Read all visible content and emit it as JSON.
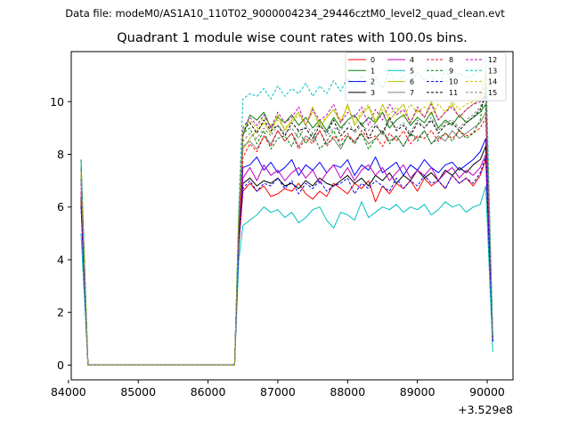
{
  "figure": {
    "suptitle": "Data file: modeM0/AS1A10_110T02_9000004234_29446cztM0_level2_quad_clean.evt",
    "title": "Quadrant 1 module wise count rates with 100.0s bins."
  },
  "chart_data": {
    "type": "line",
    "title": "Quadrant 1 module wise count rates with 100.0s bins.",
    "xlabel": "",
    "ylabel": "",
    "x_offset_label": "+3.529e8",
    "xlim": [
      84040,
      90370
    ],
    "ylim": [
      -0.56,
      11.9
    ],
    "xticks": [
      84000,
      85000,
      86000,
      87000,
      88000,
      89000,
      90000
    ],
    "yticks": [
      0,
      2,
      4,
      6,
      8,
      10
    ],
    "grid": false,
    "legend": {
      "position": "top-right",
      "columns": 4
    },
    "x": [
      84180,
      84280,
      86380,
      86440,
      86500,
      86600,
      86700,
      86800,
      86900,
      87000,
      87100,
      87200,
      87300,
      87400,
      87500,
      87600,
      87700,
      87800,
      87900,
      88000,
      88100,
      88200,
      88300,
      88400,
      88500,
      88600,
      88700,
      88800,
      88900,
      89000,
      89100,
      89200,
      89300,
      89400,
      89500,
      89600,
      89700,
      89800,
      89900,
      89980,
      90080
    ],
    "series": [
      {
        "name": "0",
        "color": "#ff0000",
        "dash": false,
        "values": [
          6.1,
          0,
          0,
          4.5,
          6.6,
          6.9,
          6.6,
          6.8,
          6.4,
          6.5,
          6.7,
          6.6,
          6.9,
          6.5,
          6.3,
          6.6,
          6.4,
          6.9,
          6.7,
          6.5,
          6.9,
          6.7,
          7.0,
          6.2,
          6.8,
          6.5,
          6.9,
          6.7,
          7.0,
          6.6,
          7.1,
          6.8,
          7.0,
          6.7,
          7.2,
          6.9,
          7.1,
          6.8,
          7.2,
          7.8,
          0.9
        ]
      },
      {
        "name": "1",
        "color": "#008000",
        "dash": false,
        "values": [
          7.8,
          0,
          0,
          5.8,
          8.7,
          9.5,
          9.3,
          9.6,
          9.0,
          9.4,
          9.2,
          9.5,
          9.1,
          9.4,
          9.0,
          9.3,
          8.9,
          9.4,
          9.0,
          9.3,
          9.5,
          9.1,
          9.4,
          9.2,
          9.6,
          9.0,
          9.3,
          9.5,
          9.1,
          9.4,
          9.2,
          9.6,
          9.0,
          9.3,
          9.1,
          9.5,
          9.2,
          9.4,
          9.6,
          9.9,
          1.0
        ]
      },
      {
        "name": "2",
        "color": "#0000ff",
        "dash": false,
        "values": [
          6.3,
          0,
          0,
          5.0,
          7.5,
          7.6,
          7.9,
          7.4,
          7.7,
          7.3,
          7.5,
          7.8,
          7.2,
          7.6,
          7.4,
          7.7,
          7.3,
          7.6,
          7.5,
          7.8,
          7.2,
          7.6,
          7.4,
          7.9,
          7.3,
          7.5,
          7.7,
          7.2,
          7.6,
          7.4,
          7.8,
          7.5,
          7.3,
          7.6,
          7.7,
          7.4,
          7.6,
          7.8,
          8.1,
          8.6,
          0.9
        ]
      },
      {
        "name": "3",
        "color": "#000000",
        "dash": false,
        "values": [
          6.4,
          0,
          0,
          4.9,
          6.9,
          7.1,
          6.8,
          7.0,
          6.9,
          7.1,
          6.8,
          6.9,
          6.7,
          7.0,
          6.8,
          7.1,
          6.9,
          6.8,
          7.0,
          7.2,
          6.9,
          7.1,
          6.8,
          7.2,
          7.0,
          7.3,
          6.9,
          7.2,
          7.0,
          7.4,
          7.1,
          7.3,
          7.0,
          7.4,
          7.2,
          7.5,
          7.3,
          7.6,
          7.8,
          8.3,
          0.9
        ]
      },
      {
        "name": "4",
        "color": "#bf00bf",
        "dash": false,
        "values": [
          6.6,
          0,
          0,
          5.2,
          7.1,
          7.5,
          7.0,
          7.6,
          7.2,
          7.4,
          7.0,
          7.3,
          7.5,
          7.1,
          7.4,
          6.9,
          7.3,
          7.6,
          7.1,
          7.5,
          7.0,
          7.4,
          7.6,
          7.2,
          7.5,
          7.0,
          7.3,
          7.6,
          7.1,
          7.4,
          7.2,
          7.5,
          7.0,
          7.3,
          7.5,
          7.1,
          7.4,
          7.2,
          7.5,
          8.0,
          0.9
        ]
      },
      {
        "name": "5",
        "color": "#00bfbf",
        "dash": false,
        "values": [
          5.0,
          0,
          0,
          4.0,
          5.3,
          5.5,
          5.7,
          6.0,
          5.8,
          5.9,
          5.6,
          5.8,
          5.4,
          5.6,
          5.9,
          6.0,
          5.5,
          5.2,
          5.8,
          5.7,
          5.5,
          6.2,
          5.6,
          5.8,
          6.0,
          5.9,
          6.1,
          5.8,
          6.0,
          5.9,
          6.1,
          5.7,
          5.9,
          6.2,
          6.0,
          6.1,
          5.8,
          6.0,
          6.1,
          6.8,
          0.5
        ]
      },
      {
        "name": "6",
        "color": "#bfbf00",
        "dash": false,
        "values": [
          7.2,
          0,
          0,
          5.5,
          8.2,
          8.6,
          8.9,
          9.2,
          8.8,
          9.5,
          8.9,
          9.3,
          9.6,
          9.1,
          9.8,
          9.0,
          9.4,
          9.7,
          9.2,
          9.9,
          9.1,
          9.5,
          9.8,
          9.2,
          9.9,
          9.3,
          9.6,
          9.9,
          9.2,
          9.7,
          9.4,
          10.0,
          9.3,
          9.6,
          9.9,
          9.4,
          9.7,
          9.9,
          10.1,
          11.1,
          1.0
        ]
      },
      {
        "name": "7",
        "color": "#808080",
        "dash": false,
        "values": [
          7.0,
          0,
          0,
          5.3,
          8.3,
          8.5,
          8.2,
          8.7,
          8.4,
          8.9,
          8.5,
          8.8,
          8.3,
          8.7,
          8.5,
          8.9,
          8.4,
          8.6,
          8.2,
          8.7,
          8.5,
          8.8,
          8.4,
          8.6,
          8.9,
          8.5,
          8.7,
          8.3,
          8.8,
          8.6,
          8.9,
          8.4,
          8.7,
          8.5,
          8.9,
          8.6,
          8.8,
          9.0,
          9.2,
          9.6,
          0.9
        ]
      },
      {
        "name": "8",
        "color": "#ff0000",
        "dash": true,
        "values": [
          6.2,
          0,
          0,
          4.8,
          7.9,
          8.4,
          8.1,
          8.7,
          8.3,
          8.9,
          8.5,
          8.8,
          8.2,
          8.6,
          8.4,
          8.9,
          8.3,
          8.7,
          8.5,
          8.8,
          8.4,
          8.9,
          8.6,
          8.7,
          8.3,
          8.8,
          8.5,
          8.9,
          8.4,
          8.7,
          8.6,
          8.9,
          8.5,
          8.8,
          8.6,
          8.9,
          8.7,
          8.8,
          9.0,
          9.4,
          1.0
        ]
      },
      {
        "name": "9",
        "color": "#008000",
        "dash": true,
        "values": [
          7.5,
          0,
          0,
          5.6,
          8.8,
          9.0,
          8.4,
          8.9,
          8.2,
          8.6,
          8.7,
          8.3,
          8.9,
          8.4,
          8.8,
          8.2,
          8.5,
          8.9,
          8.3,
          8.7,
          8.4,
          8.8,
          8.2,
          8.6,
          8.9,
          8.4,
          8.7,
          8.3,
          8.8,
          8.5,
          8.9,
          8.4,
          8.6,
          8.8,
          8.5,
          8.9,
          8.6,
          8.8,
          9.3,
          10.7,
          1.0
        ]
      },
      {
        "name": "10",
        "color": "#0000ff",
        "dash": true,
        "values": [
          6.0,
          0,
          0,
          4.6,
          6.7,
          7.0,
          6.6,
          6.9,
          6.8,
          7.1,
          6.7,
          7.0,
          6.5,
          6.9,
          6.7,
          7.0,
          6.6,
          6.8,
          6.9,
          7.1,
          6.5,
          6.9,
          6.7,
          7.0,
          6.8,
          6.6,
          7.1,
          6.7,
          7.0,
          6.8,
          7.2,
          6.9,
          7.0,
          6.7,
          7.2,
          6.9,
          7.1,
          6.9,
          7.3,
          7.9,
          0.9
        ]
      },
      {
        "name": "11",
        "color": "#000000",
        "dash": true,
        "values": [
          7.1,
          0,
          0,
          5.4,
          8.9,
          9.2,
          8.8,
          9.3,
          8.9,
          9.1,
          8.7,
          9.2,
          8.9,
          9.0,
          8.6,
          9.1,
          8.8,
          9.3,
          8.7,
          9.0,
          8.9,
          9.2,
          8.6,
          9.1,
          8.8,
          9.4,
          8.9,
          9.1,
          8.7,
          9.2,
          9.0,
          9.3,
          8.8,
          9.1,
          9.2,
          8.9,
          9.2,
          9.4,
          9.7,
          10.2,
          1.0
        ]
      },
      {
        "name": "12",
        "color": "#bf00bf",
        "dash": true,
        "values": [
          6.9,
          0,
          0,
          5.6,
          9.0,
          9.4,
          9.1,
          9.5,
          9.0,
          9.6,
          9.2,
          9.4,
          9.8,
          9.1,
          9.7,
          9.3,
          9.5,
          9.9,
          9.2,
          9.6,
          9.4,
          9.8,
          9.1,
          9.7,
          9.3,
          9.9,
          9.5,
          9.7,
          9.2,
          9.8,
          9.4,
          9.9,
          9.3,
          9.6,
          9.8,
          9.4,
          9.7,
          9.9,
          10.0,
          10.3,
          1.0
        ]
      },
      {
        "name": "13",
        "color": "#00bfbf",
        "dash": true,
        "values": [
          7.7,
          0,
          0,
          6.0,
          10.1,
          10.3,
          10.2,
          10.5,
          10.1,
          10.6,
          10.2,
          10.5,
          10.3,
          10.7,
          10.2,
          10.6,
          10.3,
          10.8,
          10.4,
          10.9,
          10.5,
          11.0,
          10.6,
          10.9,
          10.5,
          11.2,
          10.7,
          11.0,
          10.6,
          11.1,
          10.8,
          11.0,
          10.6,
          11.2,
          10.8,
          11.1,
          10.9,
          11.0,
          11.3,
          11.7,
          1.1
        ]
      },
      {
        "name": "14",
        "color": "#bfbf00",
        "dash": true,
        "values": [
          7.3,
          0,
          0,
          5.7,
          8.9,
          9.3,
          9.0,
          9.4,
          9.1,
          9.3,
          9.0,
          9.2,
          9.5,
          9.1,
          9.6,
          9.2,
          9.4,
          9.7,
          9.3,
          9.8,
          9.2,
          9.6,
          9.9,
          9.3,
          9.7,
          9.5,
          9.8,
          9.4,
          9.9,
          9.6,
          9.8,
          9.5,
          9.9,
          9.6,
          10.0,
          9.7,
          9.9,
          10.0,
          10.3,
          10.7,
          1.0
        ]
      },
      {
        "name": "15",
        "color": "#808080",
        "dash": true,
        "values": [
          7.4,
          0,
          0,
          5.5,
          8.5,
          8.8,
          8.6,
          9.0,
          8.7,
          9.1,
          8.8,
          9.0,
          8.6,
          9.1,
          8.8,
          9.2,
          8.7,
          9.0,
          8.9,
          9.3,
          8.8,
          9.1,
          8.9,
          9.2,
          8.7,
          9.3,
          9.0,
          9.2,
          8.8,
          9.3,
          9.0,
          9.4,
          8.9,
          9.2,
          9.3,
          9.0,
          9.3,
          9.5,
          9.8,
          10.3,
          1.0
        ]
      }
    ]
  }
}
